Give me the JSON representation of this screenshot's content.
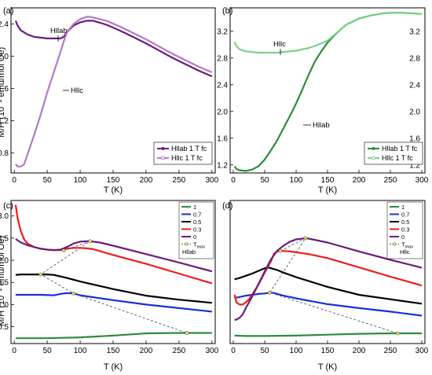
{
  "figure": {
    "ylabel_shared": "M/H (10⁻² emu/mol Oe)"
  },
  "chart_data": [
    {
      "type": "line",
      "panel": "(a)",
      "xlabel": "T (K)",
      "xlim": [
        -5,
        305
      ],
      "ylim": [
        0.55,
        2.6
      ],
      "xticks": [
        "0",
        "50",
        "100",
        "150",
        "200",
        "250",
        "300"
      ],
      "yticks": [
        "0.8",
        "1.2",
        "1.6",
        "2.0",
        "2.4"
      ],
      "annotations": [
        "Hllab",
        "Hllc"
      ],
      "legend_position": "bottom-right",
      "series": [
        {
          "name": "Hllab 1 T fc",
          "color": "#6a1c80",
          "x": [
            2,
            5,
            10,
            20,
            30,
            40,
            50,
            60,
            70,
            75,
            80,
            90,
            100,
            110,
            120,
            140,
            160,
            180,
            200,
            220,
            240,
            260,
            280,
            300
          ],
          "y": [
            2.44,
            2.38,
            2.32,
            2.27,
            2.24,
            2.23,
            2.22,
            2.22,
            2.22,
            2.24,
            2.3,
            2.38,
            2.42,
            2.44,
            2.44,
            2.39,
            2.32,
            2.24,
            2.16,
            2.07,
            1.98,
            1.9,
            1.82,
            1.75
          ]
        },
        {
          "name": "Hllc 1 T fc",
          "color": "#b279c8",
          "x": [
            2,
            5,
            10,
            15,
            20,
            30,
            40,
            50,
            60,
            70,
            75,
            80,
            90,
            100,
            110,
            115,
            120,
            140,
            160,
            180,
            200,
            220,
            240,
            260,
            280,
            300
          ],
          "y": [
            0.66,
            0.63,
            0.63,
            0.66,
            0.78,
            1.02,
            1.27,
            1.55,
            1.8,
            2.05,
            2.18,
            2.3,
            2.4,
            2.46,
            2.49,
            2.49,
            2.48,
            2.44,
            2.37,
            2.29,
            2.21,
            2.12,
            2.03,
            1.95,
            1.87,
            1.8
          ]
        }
      ]
    },
    {
      "type": "line",
      "panel": "(b)",
      "xlabel": "T (K)",
      "xlim": [
        -5,
        305
      ],
      "ylim": [
        1.08,
        3.55
      ],
      "xticks": [
        "0",
        "50",
        "100",
        "150",
        "200",
        "250",
        "300"
      ],
      "yticks": [
        "1.2",
        "1.6",
        "2.0",
        "2.4",
        "2.8",
        "3.2"
      ],
      "annotations": [
        "Hllc",
        "Hllab"
      ],
      "legend_position": "bottom-right",
      "series": [
        {
          "name": "Hllab 1 T fc",
          "color": "#2e8b3e",
          "x": [
            2,
            5,
            10,
            20,
            30,
            40,
            50,
            60,
            70,
            80,
            90,
            100,
            110,
            120,
            130,
            140,
            150,
            160,
            170,
            180,
            200,
            220,
            240,
            260,
            280,
            300
          ],
          "y": [
            1.18,
            1.14,
            1.12,
            1.11,
            1.13,
            1.18,
            1.28,
            1.42,
            1.57,
            1.75,
            1.93,
            2.12,
            2.33,
            2.55,
            2.75,
            2.9,
            3.03,
            3.13,
            3.22,
            3.3,
            3.39,
            3.44,
            3.47,
            3.48,
            3.47,
            3.46
          ]
        },
        {
          "name": "Hllc 1 T fc",
          "color": "#7ad08a",
          "x": [
            2,
            5,
            10,
            20,
            30,
            40,
            50,
            60,
            70,
            80,
            90,
            100,
            110,
            120,
            130,
            140,
            150,
            160,
            170,
            180,
            200,
            220,
            240,
            260,
            280,
            300
          ],
          "y": [
            3.04,
            2.98,
            2.93,
            2.9,
            2.89,
            2.88,
            2.88,
            2.88,
            2.88,
            2.89,
            2.9,
            2.91,
            2.93,
            2.95,
            2.98,
            3.02,
            3.06,
            3.14,
            3.22,
            3.3,
            3.39,
            3.44,
            3.47,
            3.48,
            3.47,
            3.46
          ]
        }
      ]
    },
    {
      "type": "line",
      "panel": "(c)",
      "xlabel": "T (K)",
      "xlim": [
        -5,
        305
      ],
      "ylim": [
        0.12,
        3.35
      ],
      "xticks": [
        "0",
        "50",
        "100",
        "150",
        "200",
        "250",
        "300"
      ],
      "yticks": [
        "0.5",
        "1.0",
        "1.5",
        "2.0",
        "2.5",
        "3.0"
      ],
      "legend_position": "top-right",
      "legend_note": "Hllab",
      "series": [
        {
          "name": "1",
          "color": "#2e8b3e",
          "x": [
            2,
            20,
            50,
            100,
            150,
            180,
            200,
            250,
            300
          ],
          "y": [
            0.24,
            0.24,
            0.24,
            0.26,
            0.3,
            0.33,
            0.35,
            0.36,
            0.36
          ]
        },
        {
          "name": "0.7",
          "color": "#1a2fd6",
          "x": [
            2,
            20,
            40,
            60,
            70,
            80,
            90,
            100,
            150,
            200,
            250,
            300
          ],
          "y": [
            1.22,
            1.22,
            1.22,
            1.21,
            1.24,
            1.26,
            1.25,
            1.21,
            1.1,
            1.0,
            0.92,
            0.84
          ]
        },
        {
          "name": "0.5",
          "color": "#000000",
          "x": [
            2,
            10,
            20,
            30,
            40,
            50,
            60,
            80,
            100,
            150,
            200,
            250,
            300
          ],
          "y": [
            1.67,
            1.68,
            1.68,
            1.68,
            1.68,
            1.68,
            1.67,
            1.6,
            1.52,
            1.35,
            1.2,
            1.11,
            1.04
          ]
        },
        {
          "name": "0.3",
          "color": "#ee1c1c",
          "x": [
            2,
            5,
            10,
            15,
            20,
            30,
            40,
            50,
            60,
            70,
            80,
            90,
            100,
            110,
            120,
            150,
            200,
            250,
            300
          ],
          "y": [
            3.25,
            2.95,
            2.65,
            2.47,
            2.38,
            2.3,
            2.26,
            2.24,
            2.23,
            2.23,
            2.26,
            2.28,
            2.28,
            2.27,
            2.25,
            2.12,
            1.92,
            1.7,
            1.48
          ]
        },
        {
          "name": "0",
          "color": "#6a1c80",
          "x": [
            2,
            10,
            20,
            30,
            40,
            50,
            60,
            70,
            80,
            90,
            100,
            110,
            115,
            120,
            130,
            150,
            200,
            250,
            300
          ],
          "y": [
            2.48,
            2.4,
            2.34,
            2.3,
            2.26,
            2.24,
            2.23,
            2.24,
            2.3,
            2.38,
            2.42,
            2.43,
            2.43,
            2.42,
            2.4,
            2.33,
            2.14,
            1.95,
            1.75
          ]
        },
        {
          "name": "T_max",
          "color": "#555555",
          "dashed": true,
          "marker": "circle",
          "x": [
            75,
            115,
            40,
            90,
            262
          ],
          "y": [
            2.22,
            2.43,
            1.68,
            1.25,
            0.36
          ]
        }
      ]
    },
    {
      "type": "line",
      "panel": "(d)",
      "xlabel": "T (K)",
      "xlim": [
        -5,
        305
      ],
      "ylim": [
        0.12,
        3.35
      ],
      "xticks": [
        "0",
        "50",
        "100",
        "150",
        "200",
        "250",
        "300"
      ],
      "yticks": [],
      "legend_position": "top-right",
      "legend_note": "Hllc",
      "series": [
        {
          "name": "1",
          "color": "#2e8b3e",
          "x": [
            2,
            20,
            50,
            100,
            150,
            200,
            250,
            300
          ],
          "y": [
            0.3,
            0.29,
            0.29,
            0.3,
            0.32,
            0.34,
            0.35,
            0.35
          ]
        },
        {
          "name": "0.7",
          "color": "#1a2fd6",
          "x": [
            2,
            10,
            20,
            30,
            40,
            50,
            60,
            65,
            70,
            80,
            100,
            150,
            200,
            250,
            300
          ],
          "y": [
            1.15,
            1.17,
            1.2,
            1.22,
            1.24,
            1.25,
            1.27,
            1.26,
            1.24,
            1.2,
            1.14,
            1.01,
            0.92,
            0.84,
            0.75
          ]
        },
        {
          "name": "0.5",
          "color": "#000000",
          "x": [
            2,
            10,
            20,
            30,
            40,
            50,
            55,
            60,
            70,
            80,
            100,
            150,
            200,
            250,
            300
          ],
          "y": [
            1.57,
            1.6,
            1.65,
            1.7,
            1.76,
            1.82,
            1.84,
            1.82,
            1.78,
            1.72,
            1.62,
            1.4,
            1.22,
            1.12,
            1.02
          ]
        },
        {
          "name": "0.3",
          "color": "#ee1c1c",
          "x": [
            2,
            5,
            10,
            15,
            20,
            25,
            30,
            40,
            50,
            60,
            65,
            70,
            75,
            80,
            90,
            100,
            120,
            150,
            200,
            250,
            300
          ],
          "y": [
            1.22,
            1.05,
            1.0,
            1.0,
            1.05,
            1.12,
            1.22,
            1.45,
            1.72,
            1.98,
            2.15,
            2.2,
            2.21,
            2.21,
            2.2,
            2.18,
            2.14,
            2.05,
            1.84,
            1.63,
            1.43
          ]
        },
        {
          "name": "0",
          "color": "#6a1c80",
          "x": [
            2,
            5,
            10,
            15,
            20,
            30,
            40,
            50,
            60,
            70,
            80,
            90,
            100,
            110,
            115,
            120,
            150,
            200,
            250,
            300
          ],
          "y": [
            0.66,
            0.66,
            0.7,
            0.78,
            0.92,
            1.18,
            1.46,
            1.75,
            2.02,
            2.22,
            2.33,
            2.42,
            2.47,
            2.49,
            2.5,
            2.49,
            2.4,
            2.2,
            2.01,
            1.83
          ]
        },
        {
          "name": "T_max",
          "color": "#555555",
          "dashed": true,
          "marker": "circle",
          "x": [
            75,
            115,
            58,
            262
          ],
          "y": [
            2.21,
            2.5,
            1.27,
            0.35
          ]
        }
      ]
    }
  ]
}
